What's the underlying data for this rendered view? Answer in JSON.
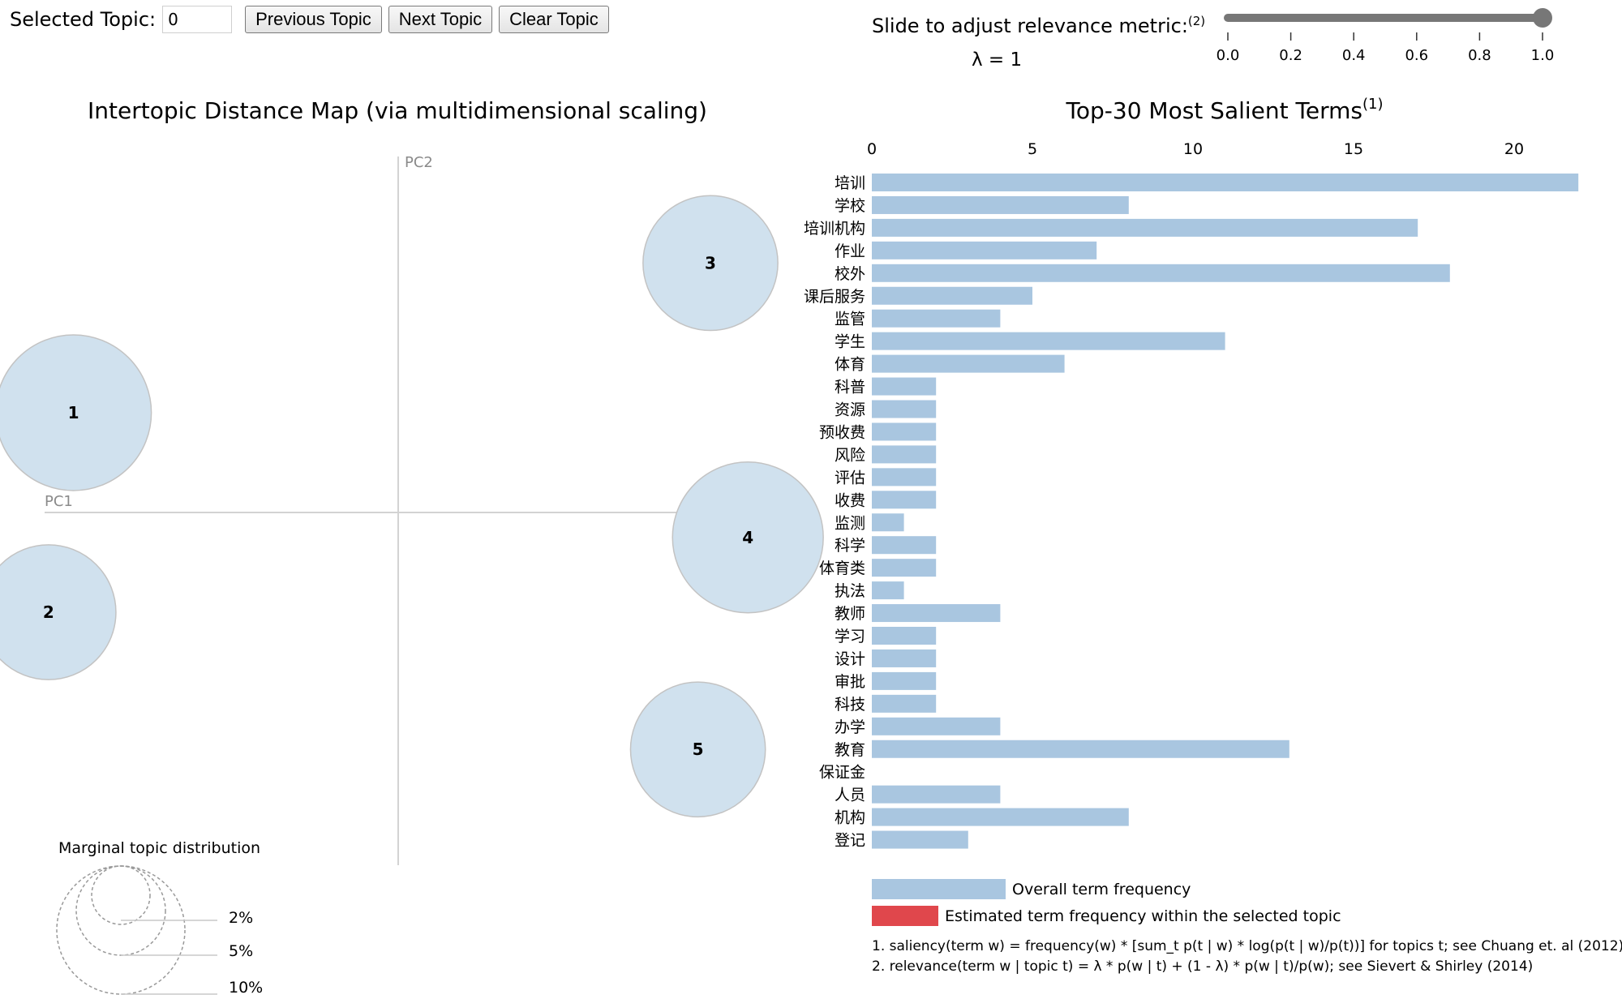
{
  "controls": {
    "selected_topic_label": "Selected Topic:",
    "selected_topic_value": "0",
    "previous_label": "Previous Topic",
    "next_label": "Next Topic",
    "clear_label": "Clear Topic"
  },
  "slider": {
    "label": "Slide to adjust relevance metric:",
    "label_footnote": "(2)",
    "lambda_text": "λ = 1",
    "value": 1.0,
    "ticks": [
      "0.0",
      "0.2",
      "0.4",
      "0.6",
      "0.8",
      "1.0"
    ]
  },
  "left_panel": {
    "title": "Intertopic Distance Map (via multidimensional scaling)",
    "pc1_label": "PC1",
    "pc2_label": "PC2",
    "marginal_title": "Marginal topic distribution",
    "marginal_labels": [
      "2%",
      "5%",
      "10%"
    ]
  },
  "right_panel": {
    "title": "Top-30 Most Salient Terms",
    "title_footnote": "(1)",
    "legend_overall": "Overall term frequency",
    "legend_selected": "Estimated term frequency within the selected topic",
    "footnote1": "1. saliency(term w) = frequency(w) * [sum_t p(t | w) * log(p(t | w)/p(t))] for topics t; see Chuang et. al (2012)",
    "footnote2": "2. relevance(term w | topic t) = λ * p(w | t) + (1 - λ) * p(w | t)/p(w); see Sievert & Shirley (2014)"
  },
  "colors": {
    "bar_overall": "#a9c6e0",
    "bar_selected": "#e0474c",
    "circle_fill": "#d0e1ee",
    "circle_stroke": "#c3c3c3",
    "slider_track": "#777777"
  },
  "chart_data": [
    {
      "type": "scatter",
      "title": "Intertopic Distance Map (via multidimensional scaling)",
      "xlabel": "PC1",
      "ylabel": "PC2",
      "points": [
        {
          "topic": "1",
          "pc1": -0.26,
          "pc2": 0.08,
          "size_pct": 16
        },
        {
          "topic": "2",
          "pc1": -0.28,
          "pc2": -0.08,
          "size_pct": 12
        },
        {
          "topic": "3",
          "pc1": 0.25,
          "pc2": 0.2,
          "size_pct": 12
        },
        {
          "topic": "4",
          "pc1": 0.28,
          "pc2": -0.02,
          "size_pct": 15
        },
        {
          "topic": "5",
          "pc1": 0.24,
          "pc2": -0.19,
          "size_pct": 12
        }
      ]
    },
    {
      "type": "bar",
      "orientation": "horizontal",
      "title": "Top-30 Most Salient Terms",
      "xlim": [
        0,
        22
      ],
      "xticks": [
        0,
        5,
        10,
        15,
        20
      ],
      "categories": [
        "培训",
        "学校",
        "培训机构",
        "作业",
        "校外",
        "课后服务",
        "监管",
        "学生",
        "体育",
        "科普",
        "资源",
        "预收费",
        "风险",
        "评估",
        "收费",
        "监测",
        "科学",
        "体育类",
        "执法",
        "教师",
        "学习",
        "设计",
        "审批",
        "科技",
        "办学",
        "教育",
        "保证金",
        "人员",
        "机构",
        "登记"
      ],
      "values": [
        22,
        8,
        17,
        7,
        18,
        5,
        4,
        11,
        6,
        2,
        2,
        2,
        2,
        2,
        2,
        1,
        2,
        2,
        1,
        4,
        2,
        2,
        2,
        2,
        4,
        13,
        0,
        4,
        8,
        3
      ]
    }
  ]
}
